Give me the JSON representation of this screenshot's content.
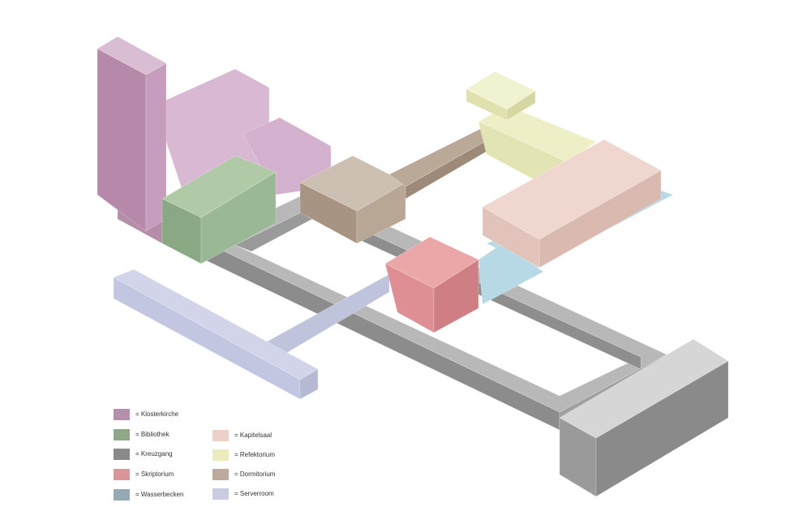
{
  "legend": [
    {
      "label": "= Klosterkirche",
      "color": "#b68fac"
    },
    {
      "label": "= Bibliothek",
      "color": "#8fa888"
    },
    {
      "label": "= Kreuzgang",
      "color": "#8a8a8a"
    },
    {
      "label": "= Skriptorium",
      "color": "#d99597"
    },
    {
      "label": "= Wasserbecken",
      "color": "#93a9b4"
    },
    {
      "label": "= Kapitelsaal",
      "color": "#ecd1c9"
    },
    {
      "label": "= Refektorium",
      "color": "#ebecbd"
    },
    {
      "label": "= Dormitorium",
      "color": "#bcab9c"
    },
    {
      "label": "= Serverroom",
      "color": "#c9cce3"
    }
  ]
}
